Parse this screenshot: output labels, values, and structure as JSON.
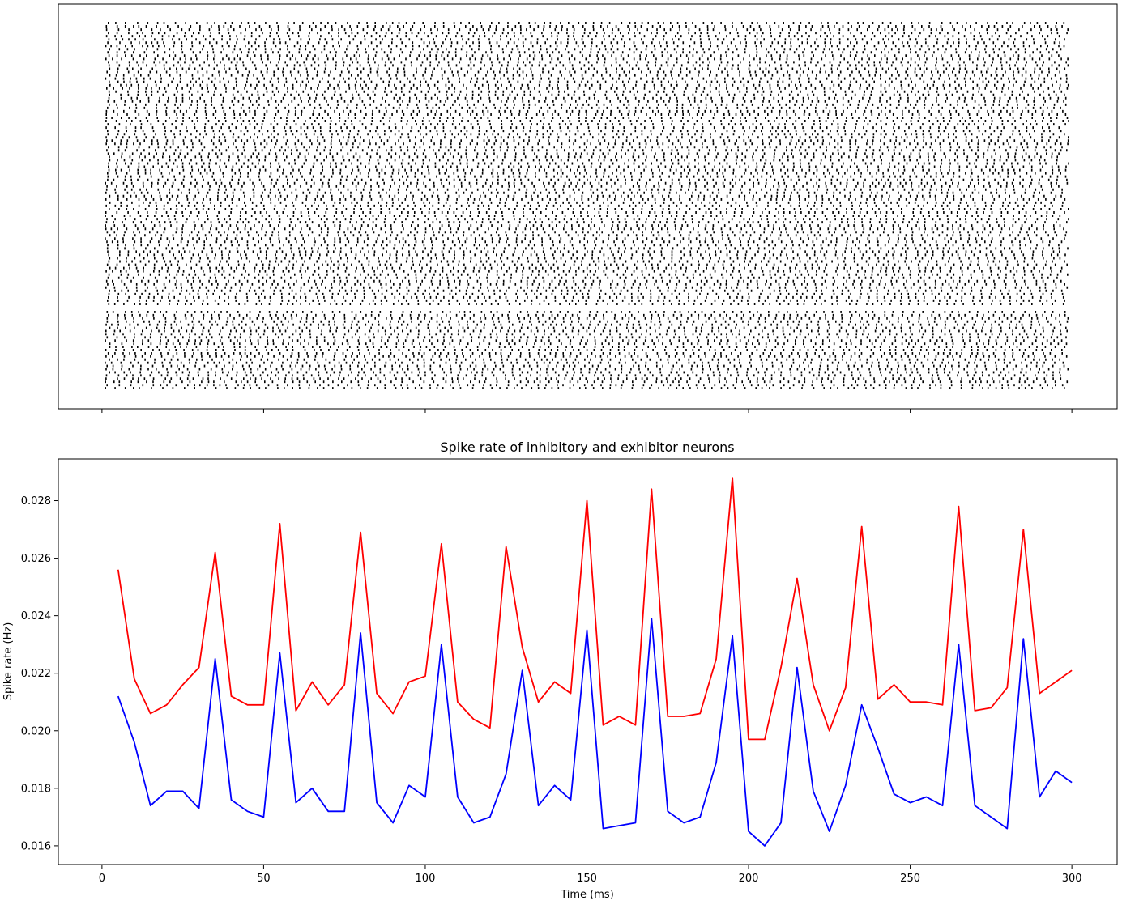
{
  "chart_data": [
    {
      "type": "scatter",
      "subtype": "raster",
      "title": "",
      "xlabel": "",
      "ylabel": "",
      "xlim": [
        -13.5,
        314
      ],
      "x_ticks": [
        0,
        50,
        100,
        150,
        200,
        250,
        300
      ],
      "x_tick_labels_visible": false,
      "y_ticks": [],
      "spike_time_range": [
        1,
        299
      ],
      "groups": [
        {
          "name": "",
          "color": "#000000",
          "rows": 87,
          "position": "top"
        },
        {
          "name": "",
          "color": "#000000",
          "rows": 25,
          "position": "bottom"
        }
      ],
      "grid": false
    },
    {
      "type": "line",
      "title": "Spike rate of inhibitory and exhibitor neurons",
      "xlabel": "Time (ms)",
      "ylabel": "Spike rate (Hz)",
      "xlim": [
        -13.5,
        314
      ],
      "ylim": [
        0.01535,
        0.02945
      ],
      "x_ticks": [
        0,
        50,
        100,
        150,
        200,
        250,
        300
      ],
      "x_tick_labels": [
        "0",
        "50",
        "100",
        "150",
        "200",
        "250",
        "300"
      ],
      "y_ticks": [
        0.016,
        0.018,
        0.02,
        0.022,
        0.024,
        0.026,
        0.028
      ],
      "y_tick_labels": [
        "0.016",
        "0.018",
        "0.020",
        "0.022",
        "0.024",
        "0.026",
        "0.028"
      ],
      "x": [
        5,
        10,
        15,
        20,
        25,
        30,
        35,
        40,
        45,
        50,
        55,
        60,
        65,
        70,
        75,
        80,
        85,
        90,
        95,
        100,
        105,
        110,
        115,
        120,
        125,
        130,
        135,
        140,
        145,
        150,
        155,
        160,
        165,
        170,
        175,
        180,
        185,
        190,
        195,
        200,
        205,
        210,
        215,
        220,
        225,
        230,
        235,
        240,
        245,
        250,
        255,
        260,
        265,
        270,
        275,
        280,
        285,
        290,
        295,
        300
      ],
      "series": [
        {
          "name": "",
          "color": "#ff0000",
          "values": [
            0.0256,
            0.0218,
            0.0206,
            0.0209,
            0.0216,
            0.0222,
            0.0262,
            0.0212,
            0.0209,
            0.0209,
            0.0272,
            0.0207,
            0.0217,
            0.0209,
            0.0216,
            0.0269,
            0.0213,
            0.0206,
            0.0217,
            0.0219,
            0.0265,
            0.021,
            0.0204,
            0.0201,
            0.0264,
            0.0229,
            0.021,
            0.0217,
            0.0213,
            0.028,
            0.0202,
            0.0205,
            0.0202,
            0.0284,
            0.0205,
            0.0205,
            0.0206,
            0.0225,
            0.0288,
            0.0197,
            0.0197,
            0.0222,
            0.0253,
            0.0216,
            0.02,
            0.0215,
            0.0271,
            0.0211,
            0.0216,
            0.021,
            0.021,
            0.0209,
            0.0278,
            0.0207,
            0.0208,
            0.0215,
            0.027,
            0.0213,
            0.0217,
            0.0221
          ]
        },
        {
          "name": "",
          "color": "#0000ff",
          "values": [
            0.0212,
            0.0196,
            0.0174,
            0.0179,
            0.0179,
            0.0173,
            0.0225,
            0.0176,
            0.0172,
            0.017,
            0.0227,
            0.0175,
            0.018,
            0.0172,
            0.0172,
            0.0234,
            0.0175,
            0.0168,
            0.0181,
            0.0177,
            0.023,
            0.0177,
            0.0168,
            0.017,
            0.0185,
            0.0221,
            0.0174,
            0.0181,
            0.0176,
            0.0235,
            0.0166,
            0.0167,
            0.0168,
            0.0239,
            0.0172,
            0.0168,
            0.017,
            0.0189,
            0.0233,
            0.0165,
            0.016,
            0.0168,
            0.0222,
            0.0179,
            0.0165,
            0.0181,
            0.0209,
            0.0194,
            0.0178,
            0.0175,
            0.0177,
            0.0174,
            0.023,
            0.0174,
            0.017,
            0.0166,
            0.0232,
            0.0177,
            0.0186,
            0.0182
          ]
        }
      ],
      "grid": false,
      "legend": "none"
    }
  ]
}
